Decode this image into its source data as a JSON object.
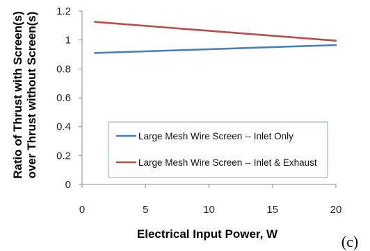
{
  "chart_data": {
    "type": "line",
    "title": "",
    "xlabel": "Electrical Input Power, W",
    "ylabel": [
      "Ratio of Thrust with Screen(s)",
      "over Thrust without Screen(s)"
    ],
    "xlim": [
      0,
      20
    ],
    "ylim": [
      0,
      1.2
    ],
    "x_ticks": [
      "0",
      "5",
      "10",
      "15",
      "20"
    ],
    "y_ticks": [
      "0",
      "0.2",
      "0.4",
      "0.6",
      "0.8",
      "1",
      "1.2"
    ],
    "grid": false,
    "legend_position": "lower-center",
    "series": [
      {
        "name": "Large Mesh Wire Screen -- Inlet Only",
        "color": "#4a7ebb",
        "x": [
          1,
          20
        ],
        "y": [
          0.91,
          0.965
        ]
      },
      {
        "name": "Large Mesh Wire Screen -- Inlet & Exhaust",
        "color": "#be4b48",
        "x": [
          1,
          20
        ],
        "y": [
          1.125,
          0.995
        ]
      }
    ],
    "panel_label": "(c)"
  }
}
